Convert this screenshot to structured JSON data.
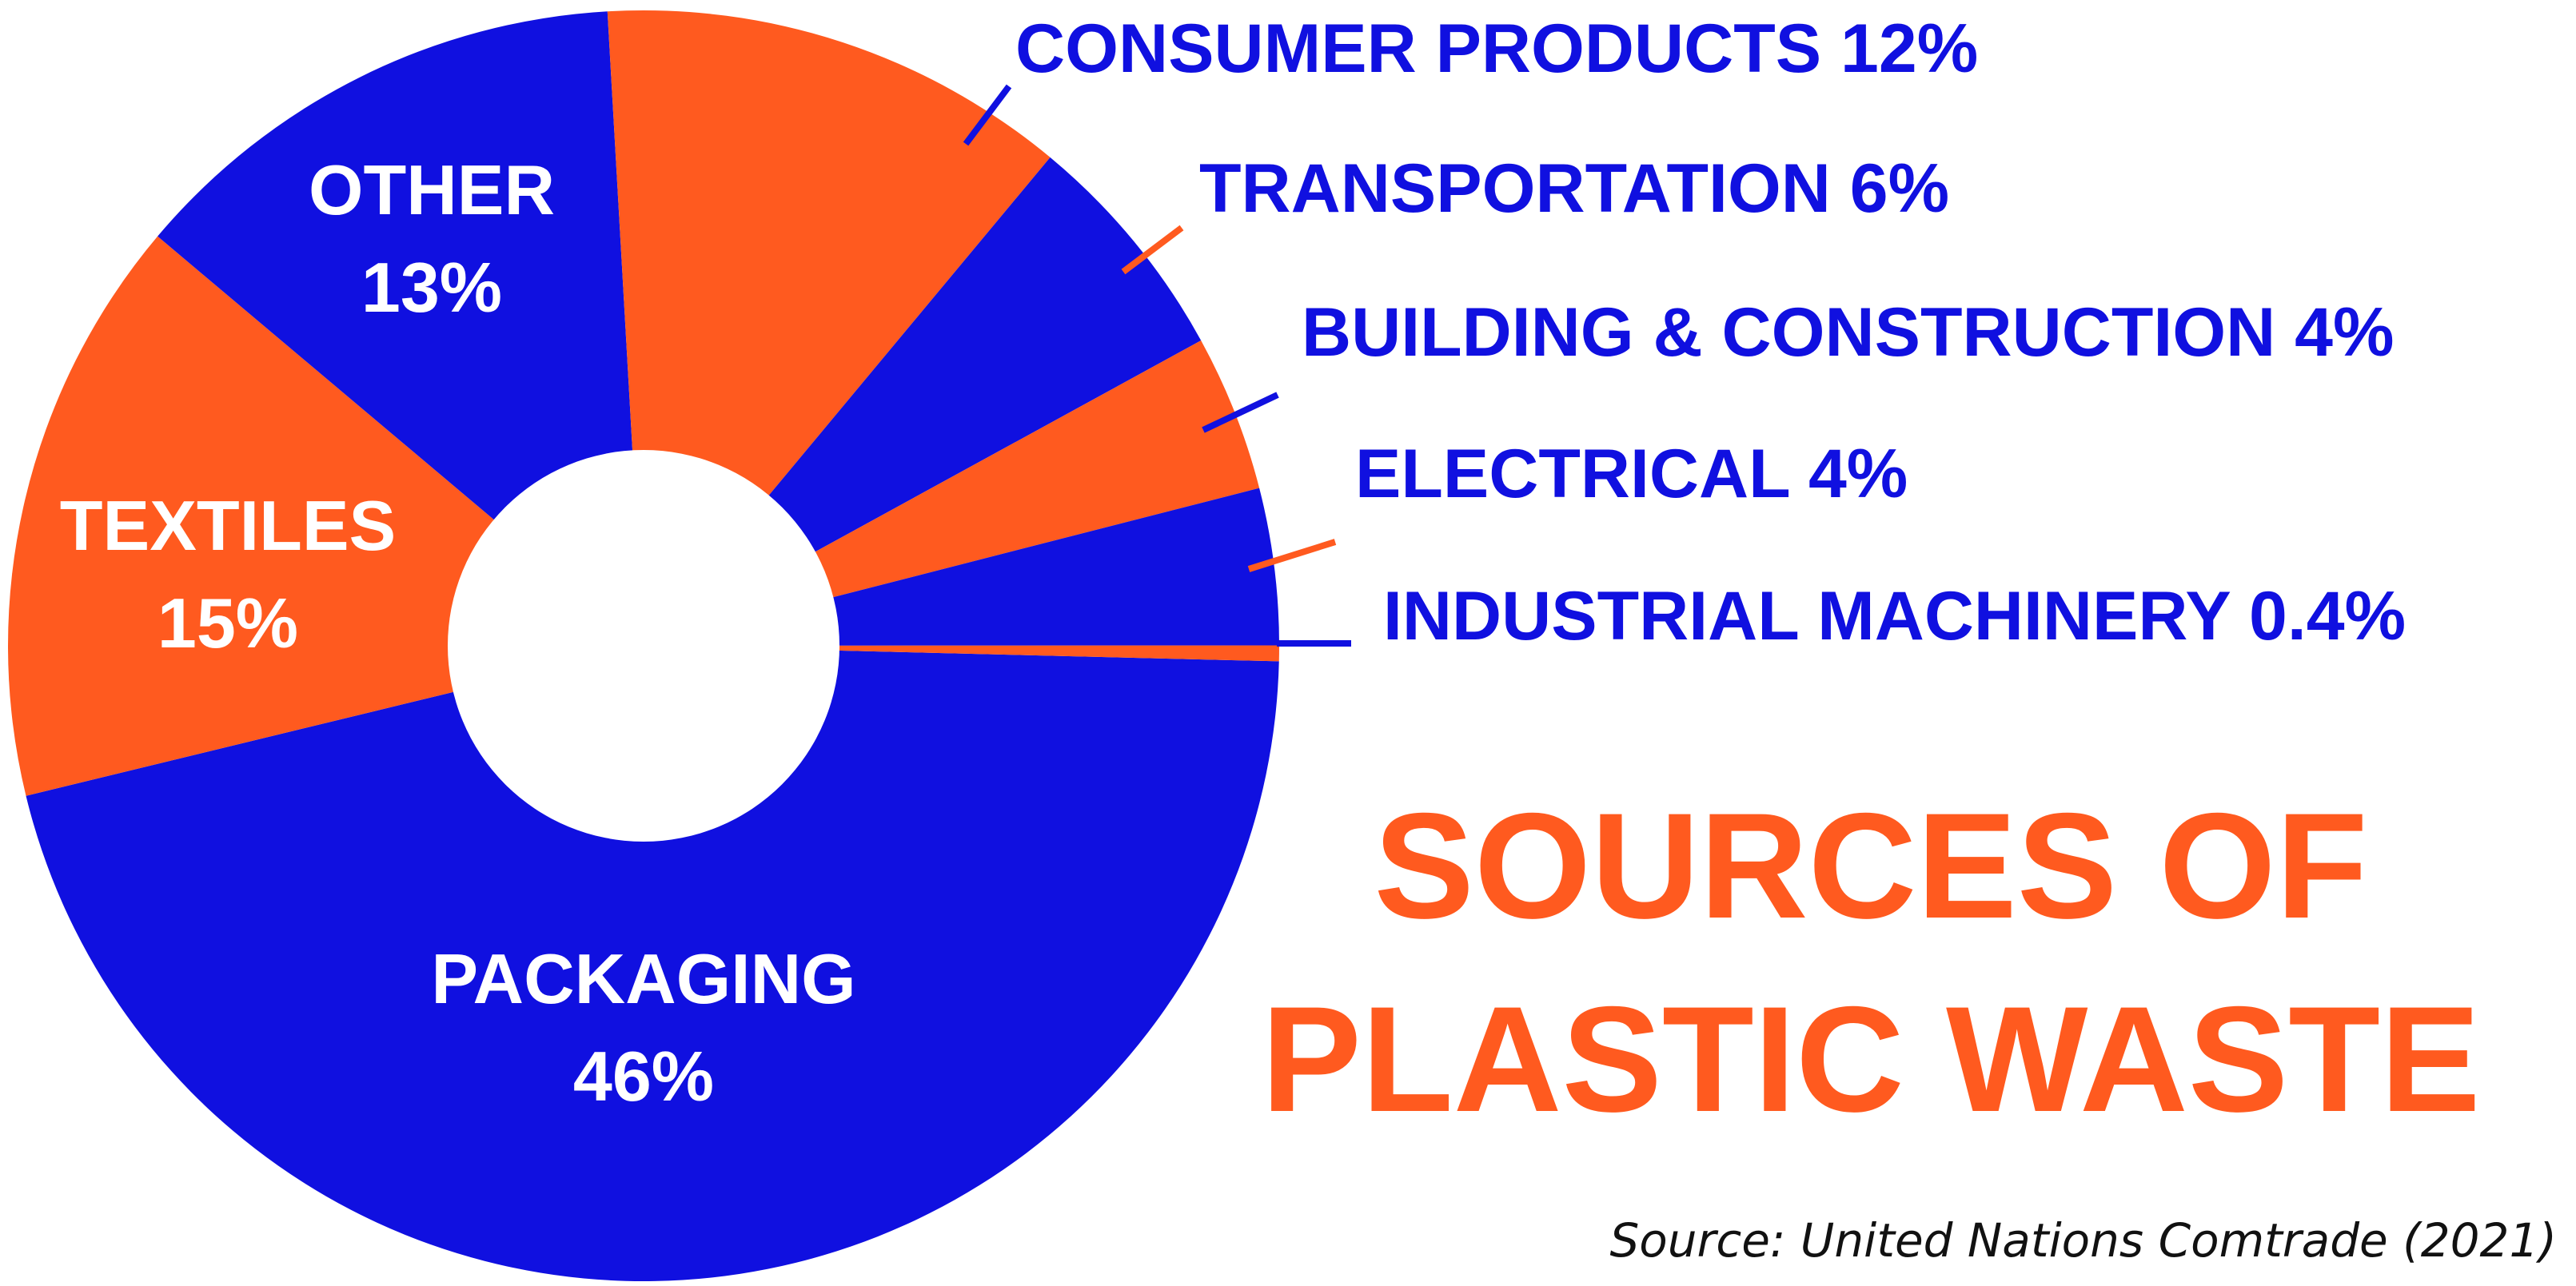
{
  "chart_data": {
    "type": "pie",
    "donut": true,
    "title": [
      "SOURCES OF",
      "PLASTIC WASTE"
    ],
    "source": "Source: United Nations Comtrade (2021)",
    "colors": {
      "blue": "#1010E0",
      "orange": "#FF5A1F"
    },
    "slices": [
      {
        "label": "PACKAGING",
        "display": "46%",
        "value": 46,
        "color": "blue"
      },
      {
        "label": "TEXTILES",
        "display": "15%",
        "value": 15,
        "color": "orange"
      },
      {
        "label": "OTHER",
        "display": "13%",
        "value": 13,
        "color": "blue"
      },
      {
        "label": "CONSUMER PRODUCTS",
        "display": "12%",
        "value": 12,
        "color": "orange"
      },
      {
        "label": "TRANSPORTATION",
        "display": "6%",
        "value": 6,
        "color": "blue"
      },
      {
        "label": "BUILDING & CONSTRUCTION",
        "display": "4%",
        "value": 4,
        "color": "orange"
      },
      {
        "label": "ELECTRICAL",
        "display": "4%",
        "value": 4,
        "color": "blue"
      },
      {
        "label": "INDUSTRIAL MACHINERY",
        "display": "0.4%",
        "value": 0.4,
        "color": "orange"
      }
    ]
  }
}
